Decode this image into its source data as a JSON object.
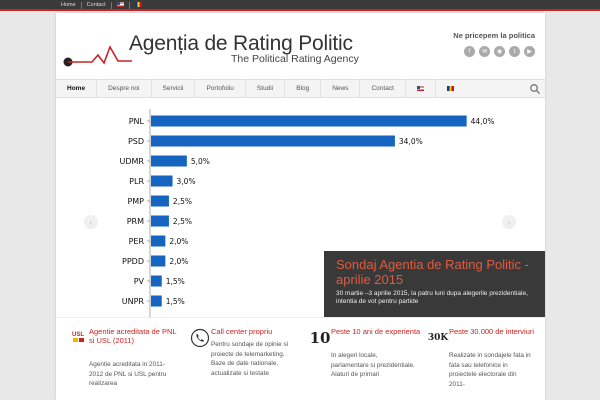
{
  "topbar": {
    "home": "Home",
    "contact": "Contact",
    "flag_en": "flag-us-icon",
    "flag_ro": "flag-ro-icon"
  },
  "header": {
    "title": "Agenția de Rating Politic",
    "subtitle": "The Political Rating Agency",
    "tagline": "Ne pricepem la politica",
    "socials": [
      "facebook-icon",
      "email-icon",
      "rss-icon",
      "twitter-icon",
      "youtube-icon"
    ]
  },
  "nav": {
    "items": [
      "Home",
      "Despre noi",
      "Servicii",
      "Portofoliu",
      "Studii",
      "Blog",
      "News",
      "Contact"
    ],
    "active": "Home"
  },
  "colors": {
    "accent": "#cc2222",
    "bar": "#1565c0",
    "caption_title": "#e35a3d"
  },
  "chart_data": {
    "type": "bar",
    "orientation": "horizontal",
    "categories": [
      "PNL",
      "PSD",
      "UDMR",
      "PLR",
      "PMP",
      "PRM",
      "PER",
      "PPDD",
      "PV",
      "UNPR"
    ],
    "values": [
      44.0,
      34.0,
      5.0,
      3.0,
      2.5,
      2.5,
      2.0,
      2.0,
      1.5,
      1.5
    ],
    "value_labels": [
      "44,0%",
      "34,0%",
      "5,0%",
      "3,0%",
      "2,5%",
      "2,5%",
      "2,0%",
      "2,0%",
      "1,5%",
      "1,5%"
    ],
    "xlim": [
      0,
      46
    ]
  },
  "caption": {
    "title": "Sondaj Agentia de Rating Politic - aprilie 2015",
    "text": "30 martie –3 aprilie 2015, la patru luni dupa alegerile prezidentiale, intentia de vot pentru partide"
  },
  "features": [
    {
      "icon": "usl-logo-icon",
      "icon_text_a": "USL",
      "title": "Agentie acreditata de PNL si USL (2011)",
      "text": "Agentie acreditata in 2011-2012 de PNL si USL pentru realizarea"
    },
    {
      "icon": "phone-icon",
      "title": "Call center propriu",
      "text": "Pentru sondaje de opinie si proiecte de telemarketing. Baze de date nationale, actualizate si testate"
    },
    {
      "icon": "number-10-icon",
      "icon_text": "10",
      "title": "Peste 10 ani de experienta",
      "text": "In alegeri locale, parlamentare si prezidentiale. Alaturi de primari"
    },
    {
      "icon": "number-30k-icon",
      "icon_text": "30K",
      "title": "Peste 30.000 de interviuri",
      "text": "Realizate in sondajele fata in fata sau telefonice in proiectele electorale din 2011-"
    }
  ]
}
